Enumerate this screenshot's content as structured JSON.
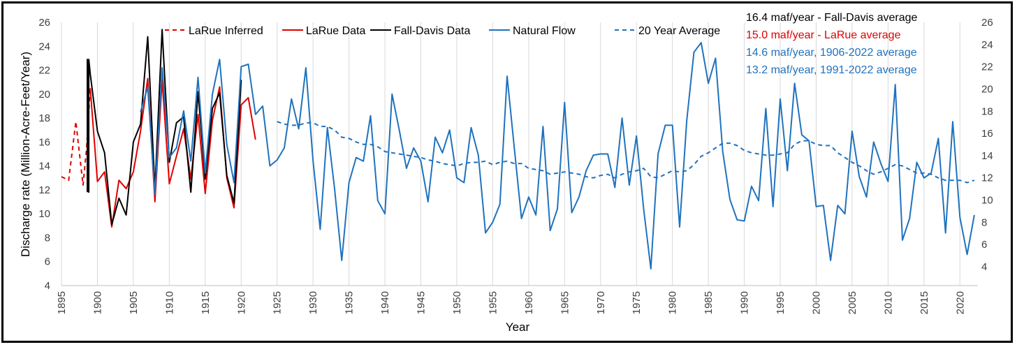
{
  "chart_data": {
    "type": "line",
    "xlabel": "Year",
    "ylabel": "Discharge rate (Million-Acre-Feet/Year)",
    "xlim": [
      1895,
      2022
    ],
    "ylim": [
      4,
      26
    ],
    "y2lim": [
      2,
      26
    ],
    "x_ticks": [
      1895,
      1900,
      1905,
      1910,
      1915,
      1920,
      1925,
      1930,
      1935,
      1940,
      1945,
      1950,
      1955,
      1960,
      1965,
      1970,
      1975,
      1980,
      1985,
      1990,
      1995,
      2000,
      2005,
      2010,
      2015,
      2020
    ],
    "y_ticks": [
      4,
      6,
      8,
      10,
      12,
      14,
      16,
      18,
      20,
      22,
      24,
      26
    ],
    "y2_ticks": [
      4,
      6,
      8,
      10,
      12,
      14,
      16,
      18,
      20,
      22,
      24,
      26
    ],
    "grid": "vertical",
    "legend_position": "top",
    "series": [
      {
        "name": "LaRue Inferred",
        "style": "dashed",
        "color": "#E00000",
        "x": [
          1895,
          1896,
          1897,
          1898,
          1898.5,
          1899
        ],
        "y": [
          13.1,
          12.8,
          17.7,
          12.4,
          15.5,
          20.5
        ]
      },
      {
        "name": "LaRue Data",
        "style": "solid",
        "color": "#E00000",
        "x": [
          1899,
          1900,
          1901,
          1902,
          1903,
          1904,
          1905,
          1906,
          1907,
          1908,
          1909,
          1910,
          1911,
          1912,
          1913,
          1914,
          1915,
          1916,
          1917,
          1918,
          1919,
          1920,
          1921,
          1922
        ],
        "y": [
          20.5,
          12.7,
          13.5,
          8.9,
          12.8,
          12.1,
          13.5,
          16.9,
          21.3,
          11.0,
          21.2,
          12.5,
          14.8,
          17.1,
          12.9,
          18.3,
          11.7,
          17.8,
          20.6,
          13.0,
          10.5,
          19.1,
          19.7,
          16.2
        ]
      },
      {
        "name": "Fall-Davis Data",
        "style": "solid",
        "color": "#000000",
        "x": [
          1898.6,
          1898.6,
          1898.8,
          1898.8,
          1899,
          1900,
          1901,
          1902,
          1903,
          1904,
          1905,
          1906,
          1907,
          1908,
          1909,
          1910,
          1911,
          1912,
          1913,
          1914,
          1915,
          1916,
          1917,
          1918,
          1919,
          1920
        ],
        "y": [
          11.8,
          22.9,
          11.8,
          22.9,
          21.7,
          16.9,
          15.1,
          9.1,
          11.3,
          9.9,
          16.0,
          17.5,
          24.8,
          12.0,
          25.4,
          14.3,
          17.6,
          18.1,
          11.8,
          20.2,
          12.9,
          18.8,
          20.1,
          13.2,
          10.9,
          21.2
        ]
      },
      {
        "name": "Natural Flow",
        "style": "solid",
        "color": "#1F72BD",
        "x": [
          1906,
          1907,
          1908,
          1909,
          1910,
          1911,
          1912,
          1913,
          1914,
          1915,
          1916,
          1917,
          1918,
          1919,
          1920,
          1921,
          1922,
          1923,
          1924,
          1925,
          1926,
          1927,
          1928,
          1929,
          1930,
          1931,
          1932,
          1933,
          1934,
          1935,
          1936,
          1937,
          1938,
          1939,
          1940,
          1941,
          1942,
          1943,
          1944,
          1945,
          1946,
          1947,
          1948,
          1949,
          1950,
          1951,
          1952,
          1953,
          1954,
          1955,
          1956,
          1957,
          1958,
          1959,
          1960,
          1961,
          1962,
          1963,
          1964,
          1965,
          1966,
          1967,
          1968,
          1969,
          1970,
          1971,
          1972,
          1973,
          1974,
          1975,
          1976,
          1977,
          1978,
          1979,
          1980,
          1981,
          1982,
          1983,
          1984,
          1985,
          1986,
          1987,
          1988,
          1989,
          1990,
          1991,
          1992,
          1993,
          1994,
          1995,
          1996,
          1997,
          1998,
          1999,
          2000,
          2001,
          2002,
          2003,
          2004,
          2005,
          2006,
          2007,
          2008,
          2009,
          2010,
          2011,
          2012,
          2013,
          2014,
          2015,
          2016,
          2017,
          2018,
          2019,
          2020,
          2021,
          2022
        ],
        "y": [
          18.5,
          20.6,
          11.6,
          22.2,
          14.7,
          15.5,
          18.6,
          14.4,
          21.4,
          13.4,
          20.0,
          22.9,
          15.8,
          12.6,
          22.3,
          22.5,
          18.3,
          19.0,
          14.0,
          14.5,
          15.5,
          19.6,
          17.1,
          22.2,
          14.4,
          8.7,
          17.2,
          12.1,
          6.1,
          12.6,
          14.7,
          14.4,
          18.2,
          11.1,
          10.0,
          20.0,
          17.0,
          13.8,
          15.5,
          14.4,
          11.0,
          16.4,
          15.1,
          17.0,
          13.0,
          12.6,
          17.2,
          14.9,
          8.4,
          9.3,
          10.8,
          21.5,
          15.5,
          9.6,
          11.4,
          9.9,
          17.3,
          8.6,
          10.4,
          19.3,
          10.1,
          11.4,
          13.6,
          14.9,
          15.0,
          15.0,
          12.2,
          18.0,
          12.4,
          16.5,
          10.4,
          5.4,
          15.0,
          17.4,
          17.4,
          8.9,
          17.8,
          23.5,
          24.3,
          20.9,
          23.0,
          15.2,
          11.2,
          9.5,
          9.4,
          12.3,
          11.1,
          18.8,
          10.6,
          19.6,
          13.6,
          20.9,
          16.6,
          16.1,
          10.6,
          10.7,
          6.1,
          10.7,
          10.0,
          16.9,
          13.1,
          11.4,
          16.0,
          14.2,
          12.7,
          20.8,
          7.8,
          9.6,
          14.3,
          13.0,
          13.4,
          16.3,
          8.4,
          17.7,
          9.7,
          6.6,
          9.9
        ]
      },
      {
        "name": "20 Year Average",
        "style": "dashed",
        "color": "#1F72BD",
        "x": [
          1925,
          1926,
          1927,
          1928,
          1929,
          1930,
          1931,
          1932,
          1933,
          1934,
          1935,
          1936,
          1937,
          1938,
          1939,
          1940,
          1941,
          1942,
          1943,
          1944,
          1945,
          1946,
          1947,
          1948,
          1949,
          1950,
          1951,
          1952,
          1953,
          1954,
          1955,
          1956,
          1957,
          1958,
          1959,
          1960,
          1961,
          1962,
          1963,
          1964,
          1965,
          1966,
          1967,
          1968,
          1969,
          1970,
          1971,
          1972,
          1973,
          1974,
          1975,
          1976,
          1977,
          1978,
          1979,
          1980,
          1981,
          1982,
          1983,
          1984,
          1985,
          1986,
          1987,
          1988,
          1989,
          1990,
          1991,
          1992,
          1993,
          1994,
          1995,
          1996,
          1997,
          1998,
          1999,
          2000,
          2001,
          2002,
          2003,
          2004,
          2005,
          2006,
          2007,
          2008,
          2009,
          2010,
          2011,
          2012,
          2013,
          2014,
          2015,
          2016,
          2017,
          2018,
          2019,
          2020,
          2021,
          2022
        ],
        "y": [
          17.7,
          17.5,
          17.4,
          17.4,
          17.6,
          17.6,
          17.3,
          17.3,
          17.0,
          16.4,
          16.3,
          16.0,
          15.8,
          15.8,
          15.6,
          15.2,
          15.1,
          15.0,
          14.9,
          14.8,
          14.7,
          14.5,
          14.4,
          14.2,
          14.1,
          14.0,
          14.2,
          14.3,
          14.3,
          14.4,
          14.1,
          14.3,
          14.4,
          14.2,
          14.2,
          13.8,
          13.7,
          13.6,
          13.3,
          13.4,
          13.5,
          13.4,
          13.3,
          13.1,
          13.0,
          13.2,
          13.3,
          13.0,
          13.3,
          13.5,
          13.6,
          13.8,
          13.1,
          13.0,
          13.3,
          13.6,
          13.5,
          13.6,
          14.1,
          14.8,
          15.1,
          15.5,
          15.9,
          15.9,
          15.7,
          15.3,
          15.1,
          15.0,
          14.9,
          14.9,
          15.0,
          15.1,
          15.8,
          16.1,
          16.1,
          15.8,
          15.7,
          15.7,
          15.1,
          14.7,
          14.3,
          14.0,
          13.6,
          13.3,
          13.5,
          13.8,
          14.1,
          14.0,
          13.7,
          13.4,
          13.4,
          13.3,
          13.0,
          12.8,
          12.8,
          12.8,
          12.6,
          12.8
        ]
      }
    ],
    "annotations": [
      {
        "text": "16.4 maf/year - Fall-Davis average",
        "color": "#000000"
      },
      {
        "text": "15.0 maf/year - LaRue average",
        "color": "#E00000"
      },
      {
        "text": "14.6 maf/year, 1906-2022 average",
        "color": "#1F72BD"
      },
      {
        "text": "13.2 maf/year, 1991-2022 average",
        "color": "#1F72BD"
      }
    ]
  }
}
